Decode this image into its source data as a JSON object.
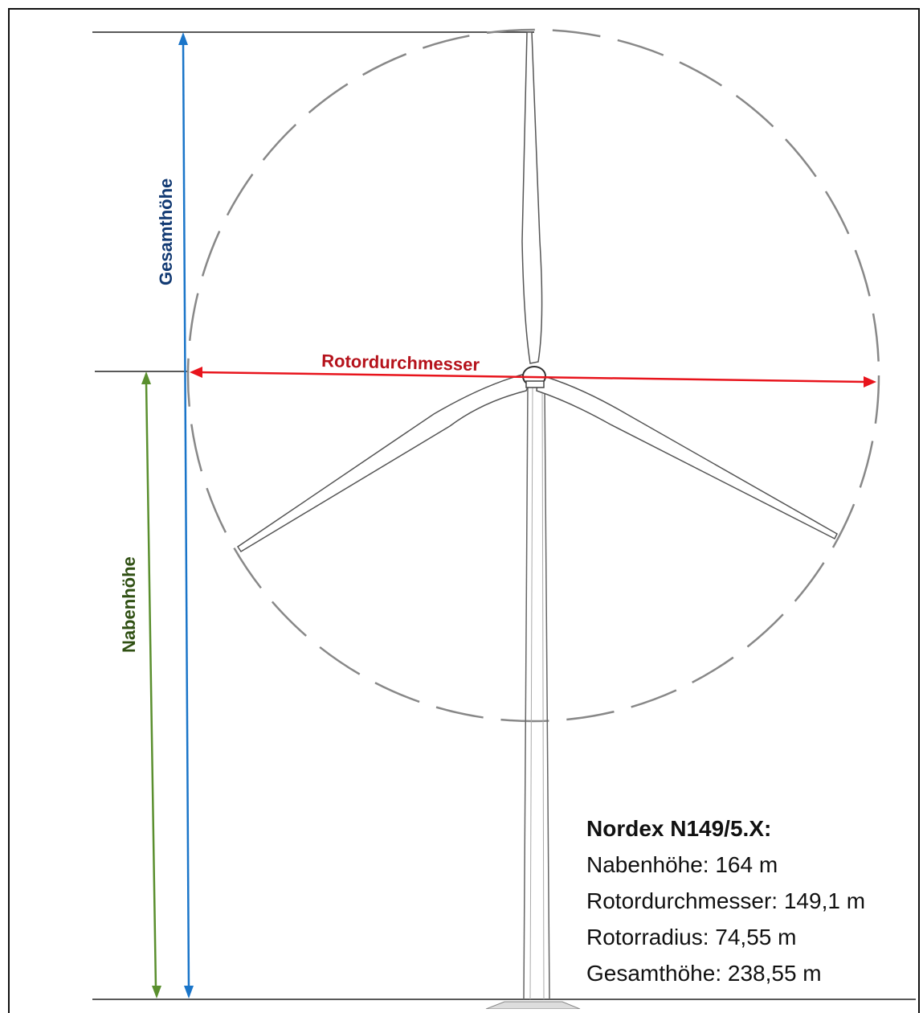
{
  "dimensions": {
    "total_height_label": "Gesamthöhe",
    "rotor_diameter_label": "Rotordurchmesser",
    "hub_height_label": "Nabenhöhe"
  },
  "info_box": {
    "title": "Nordex N149/5.X:",
    "lines": [
      "Nabenhöhe: 164 m",
      "Rotordurchmesser: 149,1 m",
      "Rotorradius: 74,55 m",
      "Gesamthöhe: 238,55 m"
    ]
  },
  "colors": {
    "total_height": "#1a75c9",
    "rotor_diameter": "#e8141c",
    "hub_height": "#5a8f2e",
    "label_total_height": "#123a73",
    "label_rotor_diameter": "#b5121b",
    "label_hub_height": "#2f4f12",
    "turbine_outline": "#555555",
    "rotor_circle": "#888888"
  }
}
